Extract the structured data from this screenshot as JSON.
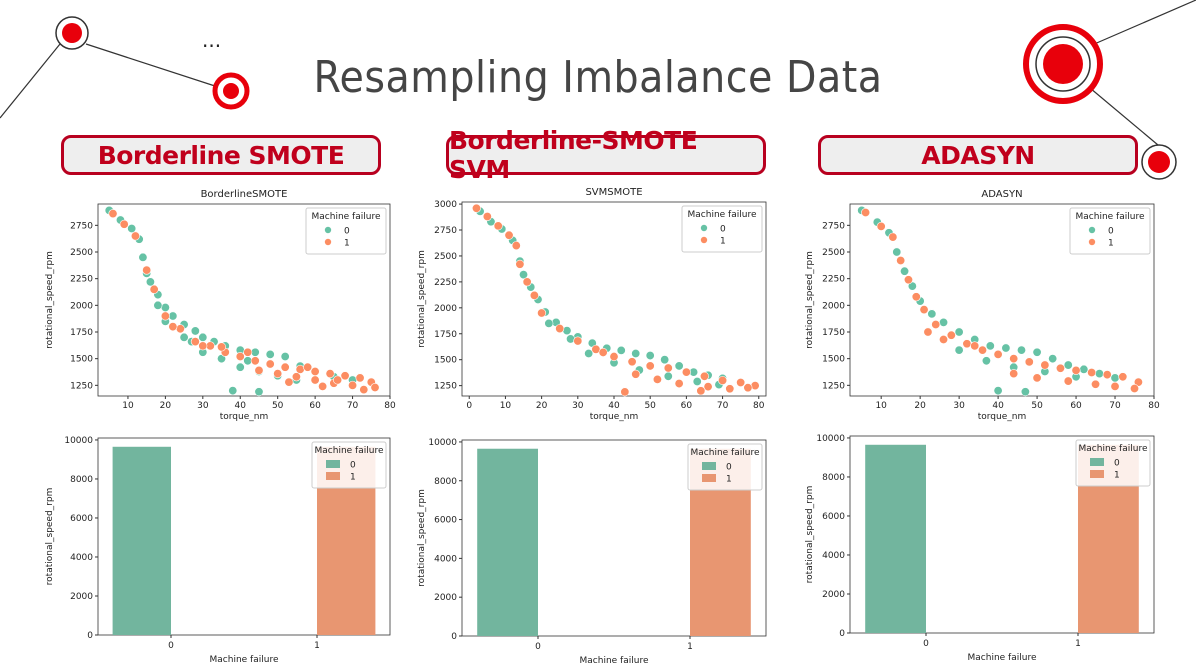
{
  "page": {
    "title": "Resampling Imbalance Data",
    "ellipsis": "...",
    "methods": [
      "Borderline SMOTE",
      "Borderline-SMOTE SVM",
      "ADASYN"
    ]
  },
  "colors": {
    "class0": "#66c2a5",
    "class1": "#fc8d62",
    "bar0": "#72b59e",
    "bar1": "#e89671",
    "accent": "#c0001c",
    "deco_red": "#e8000b"
  },
  "chart_data": [
    {
      "type": "scatter",
      "title": "BorderlineSMOTE",
      "xlabel": "torque_nm",
      "ylabel": "rotational_speed_rpm",
      "xlim": [
        2,
        80
      ],
      "ylim": [
        1150,
        2950
      ],
      "xticks": [
        10,
        20,
        30,
        40,
        50,
        60,
        70,
        80
      ],
      "yticks": [
        1250,
        1500,
        1750,
        2000,
        2250,
        2500,
        2750
      ],
      "legend": {
        "title": "Machine failure",
        "entries": [
          "0",
          "1"
        ],
        "position": "top-right"
      },
      "series": [
        {
          "name": "0",
          "points": [
            [
              5,
              2890
            ],
            [
              8,
              2800
            ],
            [
              11,
              2720
            ],
            [
              13,
              2620
            ],
            [
              14,
              2450
            ],
            [
              15,
              2300
            ],
            [
              16,
              2220
            ],
            [
              18,
              2100
            ],
            [
              20,
              1980
            ],
            [
              22,
              1900
            ],
            [
              25,
              1820
            ],
            [
              28,
              1760
            ],
            [
              30,
              1700
            ],
            [
              33,
              1660
            ],
            [
              36,
              1620
            ],
            [
              40,
              1580
            ],
            [
              44,
              1560
            ],
            [
              48,
              1540
            ],
            [
              52,
              1520
            ],
            [
              56,
              1430
            ],
            [
              60,
              1380
            ],
            [
              65,
              1330
            ],
            [
              70,
              1300
            ],
            [
              20,
              1850
            ],
            [
              25,
              1700
            ],
            [
              30,
              1560
            ],
            [
              35,
              1500
            ],
            [
              40,
              1420
            ],
            [
              45,
              1380
            ],
            [
              50,
              1340
            ],
            [
              55,
              1300
            ],
            [
              38,
              1200
            ],
            [
              45,
              1190
            ],
            [
              18,
              2000
            ],
            [
              27,
              1660
            ],
            [
              42,
              1480
            ]
          ]
        },
        {
          "name": "1",
          "points": [
            [
              6,
              2860
            ],
            [
              9,
              2760
            ],
            [
              12,
              2650
            ],
            [
              15,
              2330
            ],
            [
              17,
              2150
            ],
            [
              20,
              1900
            ],
            [
              24,
              1780
            ],
            [
              28,
              1660
            ],
            [
              32,
              1620
            ],
            [
              36,
              1560
            ],
            [
              40,
              1520
            ],
            [
              44,
              1480
            ],
            [
              48,
              1450
            ],
            [
              52,
              1420
            ],
            [
              56,
              1400
            ],
            [
              60,
              1380
            ],
            [
              64,
              1360
            ],
            [
              68,
              1340
            ],
            [
              72,
              1320
            ],
            [
              75,
              1280
            ],
            [
              76,
              1230
            ],
            [
              70,
              1250
            ],
            [
              65,
              1270
            ],
            [
              60,
              1300
            ],
            [
              55,
              1330
            ],
            [
              50,
              1360
            ],
            [
              45,
              1390
            ],
            [
              35,
              1610
            ],
            [
              42,
              1560
            ],
            [
              58,
              1420
            ],
            [
              66,
              1300
            ],
            [
              73,
              1210
            ],
            [
              62,
              1240
            ],
            [
              53,
              1280
            ],
            [
              30,
              1620
            ],
            [
              22,
              1800
            ]
          ]
        }
      ]
    },
    {
      "type": "scatter",
      "title": "SVMSMOTE",
      "xlabel": "torque_nm",
      "ylabel": "rotational_speed_rpm",
      "xlim": [
        -2,
        82
      ],
      "ylim": [
        1150,
        3020
      ],
      "xticks": [
        0,
        10,
        20,
        30,
        40,
        50,
        60,
        70,
        80
      ],
      "yticks": [
        1250,
        1500,
        1750,
        2000,
        2250,
        2500,
        2750,
        3000
      ],
      "legend": {
        "title": "Machine failure",
        "entries": [
          "0",
          "1"
        ],
        "position": "top-right"
      },
      "series": [
        {
          "name": "0",
          "points": [
            [
              3,
              2930
            ],
            [
              6,
              2830
            ],
            [
              9,
              2760
            ],
            [
              12,
              2650
            ],
            [
              14,
              2450
            ],
            [
              15,
              2320
            ],
            [
              17,
              2200
            ],
            [
              19,
              2080
            ],
            [
              21,
              1960
            ],
            [
              24,
              1860
            ],
            [
              27,
              1780
            ],
            [
              30,
              1720
            ],
            [
              34,
              1660
            ],
            [
              38,
              1610
            ],
            [
              42,
              1590
            ],
            [
              46,
              1560
            ],
            [
              50,
              1540
            ],
            [
              54,
              1500
            ],
            [
              58,
              1440
            ],
            [
              62,
              1380
            ],
            [
              66,
              1350
            ],
            [
              70,
              1320
            ],
            [
              22,
              1850
            ],
            [
              28,
              1700
            ],
            [
              33,
              1560
            ],
            [
              40,
              1470
            ],
            [
              47,
              1400
            ],
            [
              55,
              1340
            ],
            [
              63,
              1290
            ],
            [
              69,
              1260
            ]
          ]
        },
        {
          "name": "1",
          "points": [
            [
              2,
              2960
            ],
            [
              5,
              2880
            ],
            [
              8,
              2790
            ],
            [
              11,
              2700
            ],
            [
              13,
              2600
            ],
            [
              14,
              2420
            ],
            [
              16,
              2250
            ],
            [
              20,
              1950
            ],
            [
              25,
              1800
            ],
            [
              30,
              1680
            ],
            [
              35,
              1600
            ],
            [
              40,
              1530
            ],
            [
              45,
              1480
            ],
            [
              50,
              1440
            ],
            [
              55,
              1420
            ],
            [
              60,
              1380
            ],
            [
              65,
              1340
            ],
            [
              70,
              1300
            ],
            [
              75,
              1280
            ],
            [
              79,
              1250
            ],
            [
              72,
              1220
            ],
            [
              66,
              1240
            ],
            [
              58,
              1270
            ],
            [
              52,
              1310
            ],
            [
              46,
              1360
            ],
            [
              43,
              1190
            ],
            [
              64,
              1200
            ],
            [
              77,
              1230
            ],
            [
              18,
              2120
            ],
            [
              37,
              1570
            ]
          ]
        }
      ]
    },
    {
      "type": "scatter",
      "title": "ADASYN",
      "xlabel": "torque_nm",
      "ylabel": "rotational_speed_rpm",
      "xlim": [
        2,
        80
      ],
      "ylim": [
        1150,
        2950
      ],
      "xticks": [
        10,
        20,
        30,
        40,
        50,
        60,
        70,
        80
      ],
      "yticks": [
        1250,
        1500,
        1750,
        2000,
        2250,
        2500,
        2750
      ],
      "legend": {
        "title": "Machine failure",
        "entries": [
          "0",
          "1"
        ],
        "position": "top-right"
      },
      "series": [
        {
          "name": "0",
          "points": [
            [
              5,
              2890
            ],
            [
              9,
              2780
            ],
            [
              12,
              2680
            ],
            [
              14,
              2500
            ],
            [
              16,
              2320
            ],
            [
              18,
              2180
            ],
            [
              20,
              2040
            ],
            [
              23,
              1920
            ],
            [
              26,
              1840
            ],
            [
              30,
              1750
            ],
            [
              34,
              1680
            ],
            [
              38,
              1620
            ],
            [
              42,
              1600
            ],
            [
              46,
              1580
            ],
            [
              50,
              1560
            ],
            [
              54,
              1500
            ],
            [
              58,
              1440
            ],
            [
              62,
              1400
            ],
            [
              66,
              1360
            ],
            [
              70,
              1320
            ],
            [
              24,
              1820
            ],
            [
              30,
              1580
            ],
            [
              37,
              1480
            ],
            [
              44,
              1420
            ],
            [
              52,
              1380
            ],
            [
              60,
              1330
            ],
            [
              40,
              1200
            ],
            [
              47,
              1190
            ]
          ]
        },
        {
          "name": "1",
          "points": [
            [
              6,
              2870
            ],
            [
              10,
              2740
            ],
            [
              13,
              2640
            ],
            [
              15,
              2420
            ],
            [
              17,
              2240
            ],
            [
              19,
              2080
            ],
            [
              21,
              1960
            ],
            [
              24,
              1820
            ],
            [
              28,
              1720
            ],
            [
              32,
              1640
            ],
            [
              36,
              1580
            ],
            [
              40,
              1540
            ],
            [
              44,
              1500
            ],
            [
              48,
              1470
            ],
            [
              52,
              1440
            ],
            [
              56,
              1410
            ],
            [
              60,
              1390
            ],
            [
              64,
              1370
            ],
            [
              68,
              1350
            ],
            [
              72,
              1330
            ],
            [
              76,
              1280
            ],
            [
              75,
              1220
            ],
            [
              70,
              1240
            ],
            [
              65,
              1260
            ],
            [
              58,
              1290
            ],
            [
              50,
              1320
            ],
            [
              44,
              1360
            ],
            [
              22,
              1750
            ],
            [
              26,
              1680
            ],
            [
              34,
              1620
            ]
          ]
        }
      ]
    },
    {
      "type": "bar",
      "xlabel": "Machine failure",
      "ylabel": "rotational_speed_rpm",
      "categories": [
        "0",
        "1"
      ],
      "ylim": [
        0,
        10100
      ],
      "yticks": [
        0,
        2000,
        4000,
        6000,
        8000,
        10000
      ],
      "legend": {
        "title": "Machine failure",
        "entries": [
          "0",
          "1"
        ],
        "position": "top-right"
      },
      "series": [
        {
          "name": "0",
          "values": [
            9650,
            0
          ]
        },
        {
          "name": "1",
          "values": [
            0,
            9650
          ]
        }
      ]
    },
    {
      "type": "bar",
      "xlabel": "Machine failure",
      "ylabel": "rotational_speed_rpm",
      "categories": [
        "0",
        "1"
      ],
      "ylim": [
        0,
        10100
      ],
      "yticks": [
        0,
        2000,
        4000,
        6000,
        8000,
        10000
      ],
      "legend": {
        "title": "Machine failure",
        "entries": [
          "0",
          "1"
        ],
        "position": "top-right"
      },
      "series": [
        {
          "name": "0",
          "values": [
            9650,
            0
          ]
        },
        {
          "name": "1",
          "values": [
            0,
            9650
          ]
        }
      ]
    },
    {
      "type": "bar",
      "xlabel": "Machine failure",
      "ylabel": "rotational_speed_rpm",
      "categories": [
        "0",
        "1"
      ],
      "ylim": [
        0,
        10100
      ],
      "yticks": [
        0,
        2000,
        4000,
        6000,
        8000,
        10000
      ],
      "legend": {
        "title": "Machine failure",
        "entries": [
          "0",
          "1"
        ],
        "position": "top-right"
      },
      "series": [
        {
          "name": "0",
          "values": [
            9650,
            0
          ]
        },
        {
          "name": "1",
          "values": [
            0,
            9650
          ]
        }
      ]
    }
  ]
}
